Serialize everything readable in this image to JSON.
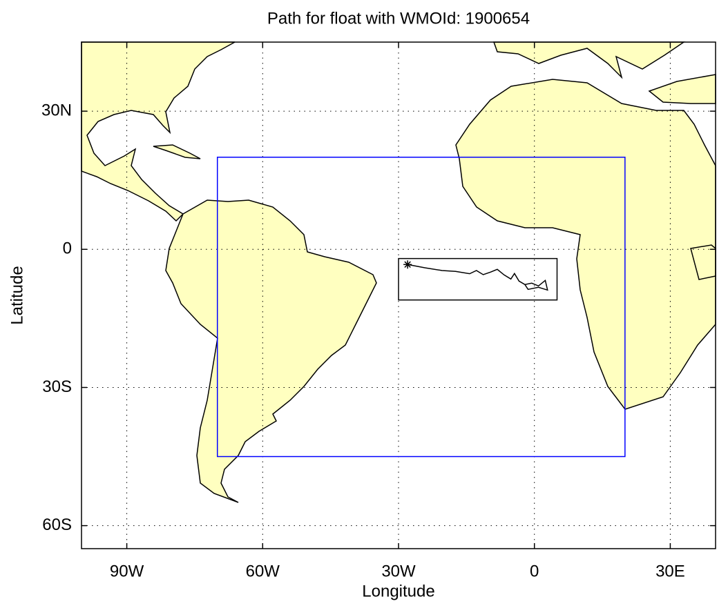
{
  "chart_data": {
    "type": "map",
    "title": "Path for float with WMOId: 1900654",
    "xlabel": "Longitude",
    "ylabel": "Latitude",
    "xlim": [
      -100,
      40
    ],
    "ylim": [
      -65,
      45
    ],
    "xticks": [
      {
        "value": -90,
        "label": "90W"
      },
      {
        "value": -60,
        "label": "60W"
      },
      {
        "value": -30,
        "label": "30W"
      },
      0,
      {
        "value": 30,
        "label": "30E"
      }
    ],
    "yticks": [
      {
        "value": -60,
        "label": "60S"
      },
      {
        "value": -30,
        "label": "30S"
      },
      0,
      {
        "value": 30,
        "label": "30N"
      }
    ],
    "grid": true,
    "boxes": [
      {
        "x": [
          -70,
          20
        ],
        "y": [
          -45,
          20
        ],
        "color": "#0000ff"
      },
      {
        "x": [
          -30,
          5
        ],
        "y": [
          -11,
          -2
        ],
        "color": "#000000"
      }
    ],
    "series": [
      {
        "color": "#000000",
        "x": [
          -28.0,
          -24.2,
          -20.4,
          -17.4,
          -14.3,
          -12.8,
          -11.3,
          -9.7,
          -8.2,
          -6.7,
          -5.2,
          -4.4,
          -3.4,
          -2.1,
          -0.6,
          0.9,
          2.4,
          2.9,
          0.9,
          -1.4,
          -2.1
        ],
        "values": [
          -3.3,
          -4.0,
          -4.6,
          -4.8,
          -5.3,
          -4.6,
          -5.5,
          -4.95,
          -4.35,
          -5.55,
          -6.45,
          -5.25,
          -6.9,
          -7.65,
          -7.35,
          -7.95,
          -6.75,
          -8.85,
          -8.25,
          -8.7,
          -7.65
        ]
      }
    ]
  }
}
